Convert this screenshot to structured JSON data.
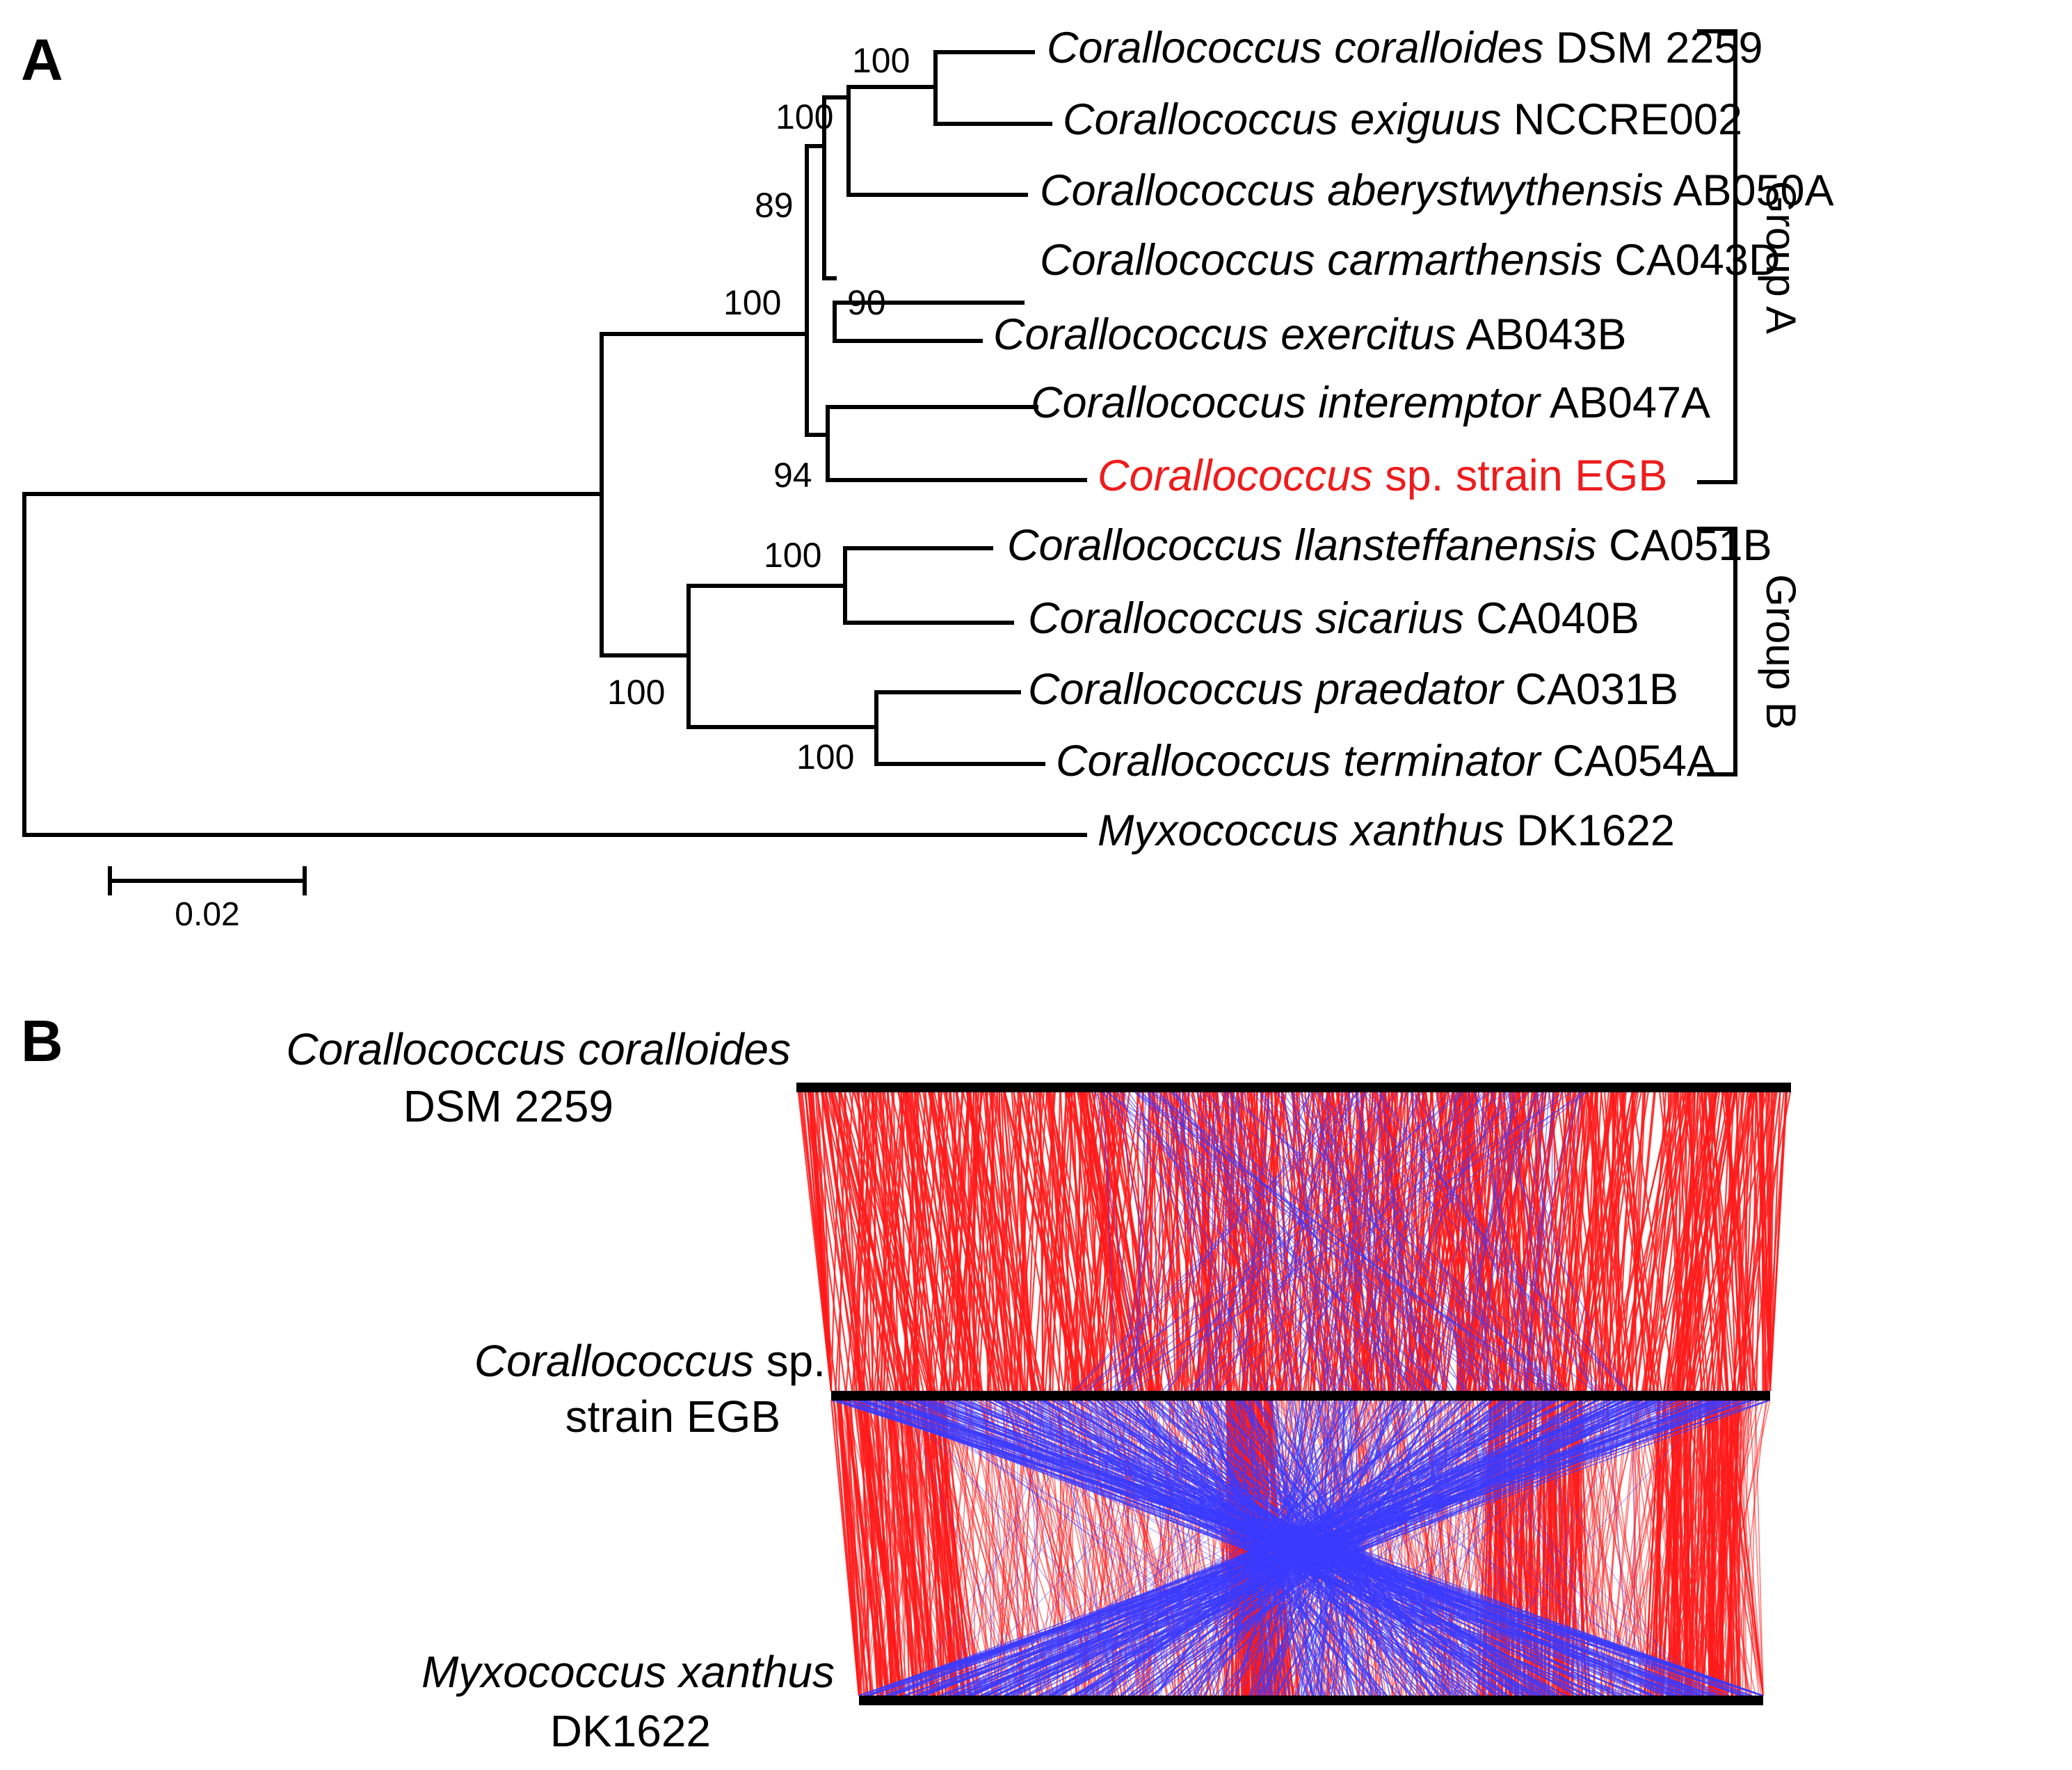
{
  "panel_a": {
    "label": "A",
    "taxa": [
      {
        "id": "t1",
        "genus": "Corallococcus",
        "species": "coralloides",
        "strain": "DSM 2259",
        "highlight": false
      },
      {
        "id": "t2",
        "genus": "Corallococcus",
        "species": "exiguus",
        "strain": "NCCRE002",
        "highlight": false
      },
      {
        "id": "t3",
        "genus": "Corallococcus",
        "species": "aberystwythensis",
        "strain": "AB050A",
        "highlight": false
      },
      {
        "id": "t4",
        "genus": "Corallococcus",
        "species": "carmarthensis",
        "strain": "CA043D",
        "highlight": false
      },
      {
        "id": "t5",
        "genus": "Corallococcus",
        "species": "exercitus",
        "strain": "AB043B",
        "highlight": false
      },
      {
        "id": "t6",
        "genus": "Corallococcus",
        "species": "interemptor",
        "strain": "AB047A",
        "highlight": false
      },
      {
        "id": "t7",
        "genus": "Corallococcus",
        "species": "",
        "strain": "sp. strain EGB",
        "highlight": true
      },
      {
        "id": "t8",
        "genus": "Corallococcus",
        "species": "llansteffanensis",
        "strain": "CA051B",
        "highlight": false
      },
      {
        "id": "t9",
        "genus": "Corallococcus",
        "species": "sicarius",
        "strain": "CA040B",
        "highlight": false
      },
      {
        "id": "t10",
        "genus": "Corallococcus",
        "species": "praedator",
        "strain": "CA031B",
        "highlight": false
      },
      {
        "id": "t11",
        "genus": "Corallococcus",
        "species": "terminator",
        "strain": "CA054A",
        "highlight": false
      },
      {
        "id": "t12",
        "genus": "Myxococcus",
        "species": "xanthus",
        "strain": "DK1622",
        "highlight": false
      }
    ],
    "bootstrap": {
      "coralloides_exiguus": "100",
      "clade_top3": "100",
      "clade_top5": "89",
      "carmarthensis_exercitus": "90",
      "group_a": "100",
      "interemptor_egb": "94",
      "llansteffanensis_sicarius": "100",
      "group_b": "100",
      "praedator_terminator": "100"
    },
    "groups": {
      "a": "Group A",
      "b": "Group B"
    },
    "scale_bar": "0.02",
    "colors": {
      "highlight": "#ee1c1c",
      "branch": "#000000"
    }
  },
  "panel_b": {
    "label": "B",
    "genomes": {
      "top": {
        "italic": "Corallococcus coralloides",
        "plain": "DSM 2259"
      },
      "middle": {
        "italic": "Corallococcus",
        "plain_inline": " sp.",
        "plain": "strain EGB"
      },
      "bottom": {
        "italic": "Myxococcus xanthus",
        "plain": "DK1622"
      }
    },
    "colors": {
      "forward_match": "#ff1a1a",
      "reverse_match": "#3b3bff",
      "genome_bar": "#000000"
    }
  }
}
